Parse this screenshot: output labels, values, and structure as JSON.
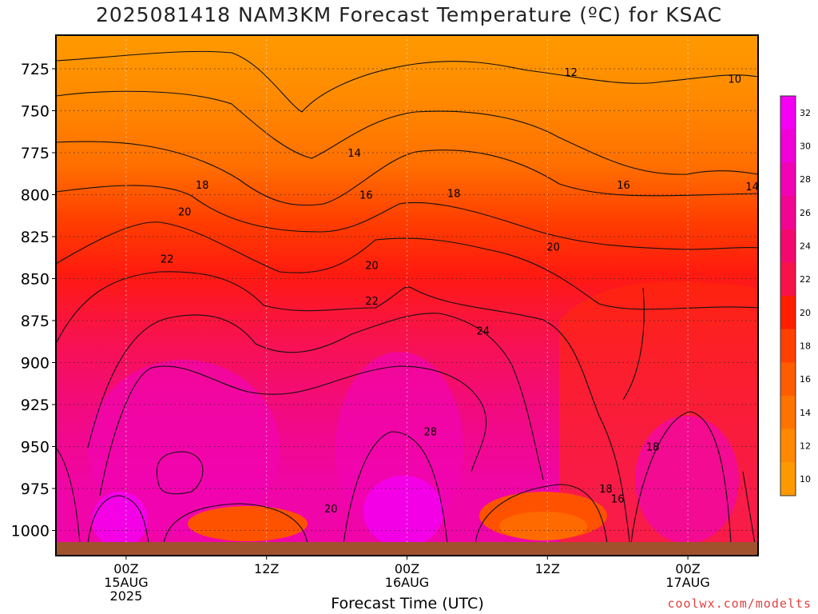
{
  "chart_data": {
    "type": "heatmap",
    "title": "2025081418 NAM3KM Forecast Temperature (ºC) for KSAC",
    "xlabel": "Forecast Time (UTC)",
    "ylabel": "",
    "x_ticks": [
      {
        "hour": 6,
        "lines": [
          "00Z",
          "15AUG",
          "2025"
        ]
      },
      {
        "hour": 18,
        "lines": [
          "12Z"
        ]
      },
      {
        "hour": 30,
        "lines": [
          "00Z",
          "16AUG"
        ]
      },
      {
        "hour": 42,
        "lines": [
          "12Z"
        ]
      },
      {
        "hour": 54,
        "lines": [
          "00Z",
          "17AUG"
        ]
      }
    ],
    "xlim": [
      0,
      60
    ],
    "y_ticks": [
      725,
      750,
      775,
      800,
      825,
      850,
      875,
      900,
      925,
      950,
      975,
      1000
    ],
    "ylim": [
      1015,
      705
    ],
    "y_unit": "hPa",
    "colorbar": {
      "labels": [
        10,
        12,
        14,
        16,
        18,
        20,
        22,
        24,
        26,
        28,
        30,
        32
      ],
      "colors": [
        "#ff9900",
        "#ff8800",
        "#ff7300",
        "#ff5c00",
        "#ff4000",
        "#ff1e00",
        "#f8124a",
        "#f5086e",
        "#f20592",
        "#f103b5",
        "#f200d8",
        "#f500f5"
      ]
    },
    "contour_labels": [
      {
        "text": "12",
        "x": 44,
        "p": 727
      },
      {
        "text": "10",
        "x": 58,
        "p": 731
      },
      {
        "text": "14",
        "x": 25.5,
        "p": 775
      },
      {
        "text": "16",
        "x": 26.5,
        "p": 800
      },
      {
        "text": "18",
        "x": 34,
        "p": 799
      },
      {
        "text": "16",
        "x": 48.5,
        "p": 794
      },
      {
        "text": "14",
        "x": 59.5,
        "p": 795
      },
      {
        "text": "18",
        "x": 12.5,
        "p": 794
      },
      {
        "text": "20",
        "x": 11,
        "p": 810
      },
      {
        "text": "22",
        "x": 9.5,
        "p": 838
      },
      {
        "text": "20",
        "x": 27,
        "p": 842
      },
      {
        "text": "20",
        "x": 42.5,
        "p": 831
      },
      {
        "text": "22",
        "x": 27,
        "p": 863
      },
      {
        "text": "24",
        "x": 36.5,
        "p": 881
      },
      {
        "text": "28",
        "x": 32,
        "p": 941
      },
      {
        "text": "18",
        "x": 51,
        "p": 950
      },
      {
        "text": "20",
        "x": 23.5,
        "p": 987
      },
      {
        "text": "18",
        "x": 47,
        "p": 975
      },
      {
        "text": "16",
        "x": 48,
        "p": 981
      }
    ],
    "grid": true,
    "ground": "brown"
  },
  "footer": {
    "credit": "coolwx.com/modelts"
  }
}
